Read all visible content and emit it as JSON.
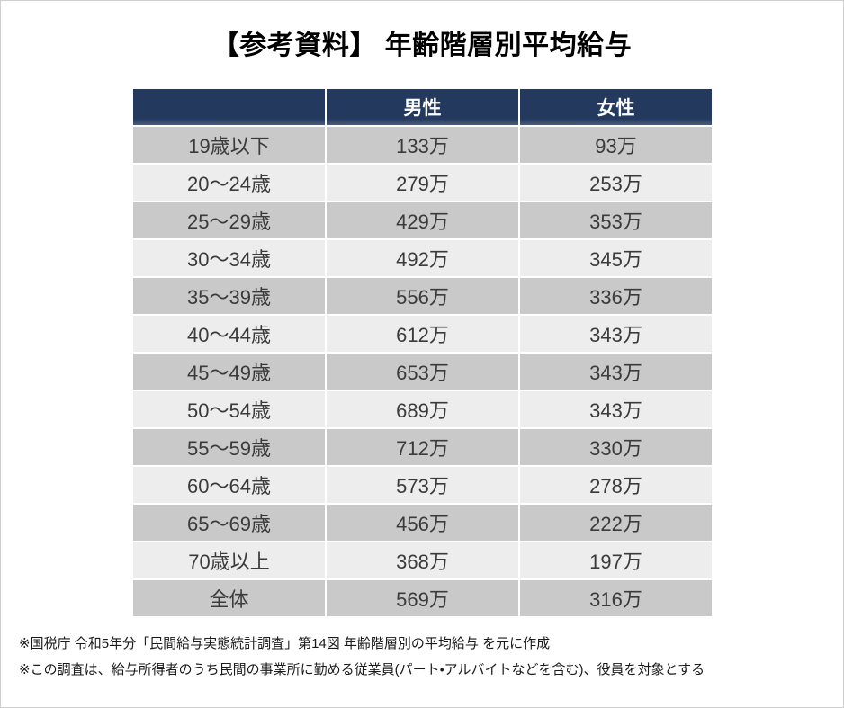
{
  "page": {
    "title": "【参考資料】 年齢階層別平均給与",
    "notes": [
      "※国税庁 令和5年分「民間給与実態統計調査」第14図 年齢階層別の平均給与 を元に作成",
      "※この調査は、給与所得者のうち民間の事業所に勤める従業員(パート・アルバイトなどを含む)、役員を対象とする"
    ]
  },
  "colors": {
    "header_bg": "#24395E",
    "header_bg_edge": "#4A5B7D",
    "row_band_dark": "#C9C9C9",
    "row_band_light": "#EDEDED",
    "cell_text": "#3B3B3B"
  },
  "chart_data": {
    "type": "table",
    "title": "【参考資料】 年齢階層別平均給与",
    "unit": "万円",
    "columns": [
      "",
      "男性",
      "女性"
    ],
    "categories": [
      "19歳以下",
      "20〜24歳",
      "25〜29歳",
      "30〜34歳",
      "35〜39歳",
      "40〜44歳",
      "45〜49歳",
      "50〜54歳",
      "55〜59歳",
      "60〜64歳",
      "65〜69歳",
      "70歳以上",
      "全体"
    ],
    "series": [
      {
        "name": "男性",
        "values": [
          133,
          279,
          429,
          492,
          556,
          612,
          653,
          689,
          712,
          573,
          456,
          368,
          569
        ]
      },
      {
        "name": "女性",
        "values": [
          93,
          253,
          353,
          345,
          336,
          343,
          343,
          343,
          330,
          278,
          222,
          197,
          316
        ]
      }
    ],
    "rows": [
      [
        "19歳以下",
        "133万",
        "93万"
      ],
      [
        "20〜24歳",
        "279万",
        "253万"
      ],
      [
        "25〜29歳",
        "429万",
        "353万"
      ],
      [
        "30〜34歳",
        "492万",
        "345万"
      ],
      [
        "35〜39歳",
        "556万",
        "336万"
      ],
      [
        "40〜44歳",
        "612万",
        "343万"
      ],
      [
        "45〜49歳",
        "653万",
        "343万"
      ],
      [
        "50〜54歳",
        "689万",
        "343万"
      ],
      [
        "55〜59歳",
        "712万",
        "330万"
      ],
      [
        "60〜64歳",
        "573万",
        "278万"
      ],
      [
        "65〜69歳",
        "456万",
        "222万"
      ],
      [
        "70歳以上",
        "368万",
        "197万"
      ],
      [
        "全体",
        "569万",
        "316万"
      ]
    ]
  }
}
